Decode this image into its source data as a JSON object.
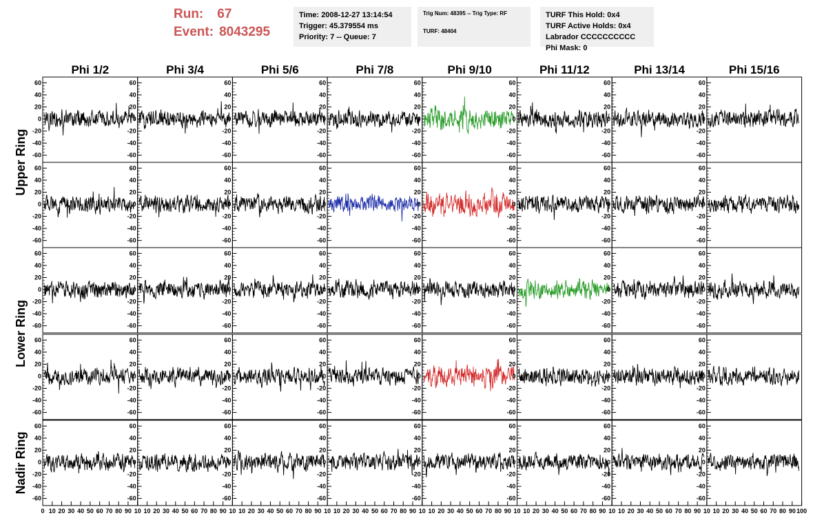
{
  "header": {
    "run_label": "Run:",
    "run_value": "67",
    "event_label": "Event:",
    "event_value": "8043295",
    "time": "Time: 2008-12-27 13:14:54",
    "trigger": "Trigger: 45.379554 ms",
    "priority": "Priority: 7 -- Queue: 7",
    "trig_num": "Trig Num: 48395 -- Trig Type: RF",
    "turf": "TURF: 48404",
    "turf_this_hold": "TURF This Hold: 0x4",
    "turf_active_holds": "TURF Active Holds: 0x4",
    "labrador": "Labrador CCCCCCCCCC",
    "phi_mask": "Phi Mask: 0"
  },
  "columns": [
    "Phi 1/2",
    "Phi 3/4",
    "Phi 5/6",
    "Phi 7/8",
    "Phi 9/10",
    "Phi 11/12",
    "Phi 13/14",
    "Phi 15/16"
  ],
  "ring_labels": [
    {
      "text": "Upper Ring",
      "rows": [
        0,
        1
      ]
    },
    {
      "text": "Lower Ring",
      "rows": [
        2,
        3
      ]
    },
    {
      "text": "Nadir Ring",
      "rows": [
        4,
        4
      ]
    }
  ],
  "colors": {
    "default": "#000000",
    "green": "#2a9d2a",
    "blue": "#1f2fa8",
    "red": "#d42a2a",
    "title_red": "#cc5555",
    "infobox_bg": "#efefef"
  },
  "chart_data": {
    "type": "line",
    "rows": 5,
    "cols": 8,
    "ylim": [
      -65,
      65
    ],
    "xlim": [
      0,
      100
    ],
    "y_ticks": [
      -60,
      -40,
      -20,
      0,
      20,
      40,
      60
    ],
    "y_tick_labels": [
      "-60",
      "-40",
      "-20",
      "0",
      "20",
      "40",
      "60"
    ],
    "x_tick_labels": [
      "0",
      "10",
      "20",
      "30",
      "40",
      "50",
      "60",
      "70",
      "80",
      "90",
      "10"
    ],
    "x_tick_labels_last": [
      "0",
      "10",
      "20",
      "30",
      "40",
      "50",
      "60",
      "70",
      "80",
      "90",
      "100"
    ],
    "n_samples": 260,
    "default_amplitude": 14,
    "highlights": [
      {
        "row": 0,
        "col": 4,
        "color": "green",
        "amplitude": 22
      },
      {
        "row": 1,
        "col": 3,
        "color": "blue",
        "amplitude": 16
      },
      {
        "row": 1,
        "col": 4,
        "color": "red",
        "amplitude": 22
      },
      {
        "row": 2,
        "col": 5,
        "color": "green",
        "amplitude": 17
      },
      {
        "row": 3,
        "col": 4,
        "color": "red",
        "amplitude": 20
      }
    ]
  }
}
